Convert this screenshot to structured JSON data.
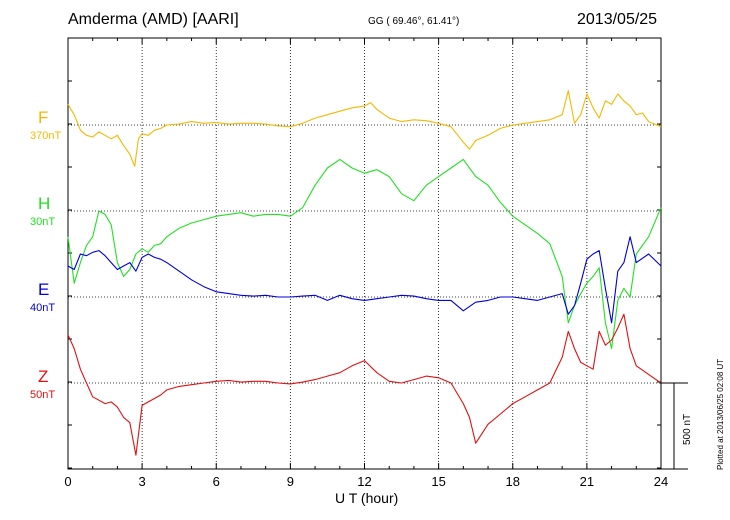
{
  "header": {
    "station": "Amderma (AMD)  [AARI]",
    "coords": "GG ( 69.46°,  61.41°)",
    "date": "2013/05/25"
  },
  "components": [
    {
      "letter": "F",
      "baseline": "370nT",
      "color": "#f5b800"
    },
    {
      "letter": "H",
      "baseline": "30nT",
      "color": "#22e022"
    },
    {
      "letter": "E",
      "baseline": "40nT",
      "color": "#0000dd"
    },
    {
      "letter": "Z",
      "baseline": "50nT",
      "color": "#e01010"
    }
  ],
  "scale_bar": {
    "label": "500 nT"
  },
  "plotted_note": "Plotted at 2013/06/25 02:08 UT",
  "chart_data": {
    "type": "line",
    "xlabel": "U T (hour)",
    "xlim": [
      0,
      24
    ],
    "xticks": [
      "0",
      "3",
      "6",
      "9",
      "12",
      "15",
      "18",
      "21",
      "24"
    ],
    "y_units": "nT deviation from baseline (500 nT scale bar)",
    "series": [
      {
        "name": "F",
        "x": [
          0,
          0.25,
          0.5,
          0.75,
          1,
          1.25,
          1.5,
          1.75,
          2,
          2.25,
          2.5,
          2.7,
          2.85,
          3,
          3.25,
          3.5,
          3.75,
          4,
          4.5,
          5,
          5.5,
          6,
          6.5,
          7,
          7.5,
          8,
          8.5,
          9,
          9.5,
          10,
          10.5,
          11,
          11.5,
          12,
          12.25,
          12.5,
          13,
          13.5,
          14,
          14.5,
          15,
          15.5,
          16,
          16.25,
          16.5,
          17,
          17.5,
          18,
          18.5,
          19,
          19.5,
          20,
          20.25,
          20.5,
          20.75,
          21,
          21.25,
          21.5,
          21.75,
          22,
          22.25,
          22.5,
          22.75,
          23,
          23.25,
          23.5,
          24
        ],
        "values": [
          120,
          60,
          -30,
          -60,
          -70,
          -40,
          -60,
          -80,
          -60,
          -120,
          -170,
          -240,
          -80,
          -50,
          -60,
          -30,
          -20,
          0,
          5,
          20,
          10,
          15,
          5,
          10,
          10,
          5,
          -5,
          -10,
          10,
          40,
          60,
          80,
          100,
          110,
          130,
          90,
          40,
          20,
          30,
          25,
          10,
          -10,
          -100,
          -140,
          -90,
          -60,
          -20,
          0,
          10,
          20,
          30,
          60,
          200,
          10,
          60,
          180,
          100,
          40,
          140,
          120,
          180,
          140,
          110,
          60,
          70,
          20,
          -10
        ]
      },
      {
        "name": "H",
        "x": [
          0,
          0.25,
          0.5,
          0.75,
          1,
          1.25,
          1.5,
          1.75,
          2,
          2.25,
          2.5,
          2.75,
          3,
          3.25,
          3.5,
          3.75,
          4,
          4.5,
          5,
          5.5,
          6,
          6.5,
          7,
          7.5,
          8,
          8.5,
          9,
          9.5,
          10,
          10.5,
          11,
          11.5,
          12,
          12.5,
          13,
          13.5,
          14,
          14.5,
          15,
          15.5,
          16,
          16.5,
          17,
          17.5,
          18,
          18.5,
          19,
          19.5,
          20,
          20.25,
          20.5,
          20.75,
          21,
          21.25,
          21.5,
          21.75,
          22,
          22.25,
          22.5,
          22.75,
          23,
          23.5,
          24
        ],
        "values": [
          -150,
          -420,
          -300,
          -200,
          -150,
          0,
          -20,
          -80,
          -300,
          -380,
          -340,
          -250,
          -220,
          -240,
          -200,
          -190,
          -150,
          -100,
          -70,
          -50,
          -30,
          -20,
          -10,
          -30,
          -20,
          -20,
          -30,
          20,
          150,
          250,
          300,
          250,
          220,
          240,
          200,
          100,
          60,
          150,
          200,
          250,
          300,
          200,
          150,
          50,
          -30,
          -80,
          -130,
          -190,
          -380,
          -650,
          -550,
          -480,
          -420,
          -380,
          -330,
          -650,
          -800,
          -520,
          -450,
          -500,
          -250,
          -150,
          20
        ]
      },
      {
        "name": "E",
        "x": [
          0,
          0.25,
          0.5,
          0.75,
          1,
          1.25,
          1.5,
          1.75,
          2,
          2.25,
          2.5,
          2.75,
          3,
          3.25,
          3.5,
          3.75,
          4,
          4.5,
          5,
          5.5,
          6,
          6.5,
          7,
          7.5,
          8,
          8.5,
          9,
          9.5,
          10,
          10.5,
          11,
          11.5,
          12,
          12.5,
          13,
          13.5,
          14,
          14.5,
          15,
          15.5,
          16,
          16.5,
          17,
          17.5,
          18,
          18.5,
          19,
          19.5,
          20,
          20.25,
          20.5,
          20.75,
          21,
          21.25,
          21.5,
          21.75,
          22,
          22.25,
          22.5,
          22.75,
          23,
          23.5,
          24
        ],
        "values": [
          180,
          160,
          250,
          240,
          260,
          270,
          240,
          200,
          160,
          180,
          200,
          150,
          230,
          250,
          230,
          220,
          200,
          150,
          100,
          60,
          30,
          20,
          10,
          5,
          10,
          0,
          0,
          5,
          10,
          -20,
          10,
          -10,
          -20,
          -10,
          0,
          10,
          5,
          -10,
          -20,
          -20,
          -80,
          -30,
          -20,
          0,
          0,
          -10,
          -20,
          0,
          20,
          -100,
          -50,
          80,
          220,
          250,
          270,
          50,
          -150,
          150,
          200,
          350,
          200,
          250,
          180
        ]
      },
      {
        "name": "Z",
        "x": [
          0,
          0.25,
          0.5,
          0.75,
          1,
          1.25,
          1.5,
          1.75,
          2,
          2.25,
          2.5,
          2.75,
          3,
          3.25,
          3.5,
          3.75,
          4,
          4.5,
          5,
          5.5,
          6,
          6.5,
          7,
          7.5,
          8,
          8.5,
          9,
          9.5,
          10,
          10.5,
          11,
          11.5,
          12,
          12.5,
          13,
          13.5,
          14,
          14.5,
          15,
          15.5,
          16,
          16.25,
          16.5,
          17,
          17.5,
          18,
          18.5,
          19,
          19.5,
          20,
          20.25,
          20.5,
          20.75,
          21,
          21.25,
          21.5,
          21.75,
          22,
          22.25,
          22.5,
          22.75,
          23,
          23.5,
          24
        ],
        "values": [
          280,
          200,
          80,
          0,
          -80,
          -100,
          -120,
          -110,
          -140,
          -200,
          -230,
          -420,
          -130,
          -110,
          -90,
          -70,
          -40,
          -20,
          -10,
          0,
          10,
          15,
          5,
          10,
          10,
          0,
          -5,
          5,
          20,
          40,
          60,
          100,
          130,
          60,
          10,
          0,
          20,
          40,
          30,
          0,
          -120,
          -200,
          -350,
          -240,
          -180,
          -120,
          -80,
          -40,
          0,
          150,
          300,
          200,
          120,
          100,
          80,
          300,
          220,
          250,
          320,
          400,
          200,
          100,
          50,
          0
        ]
      }
    ]
  }
}
